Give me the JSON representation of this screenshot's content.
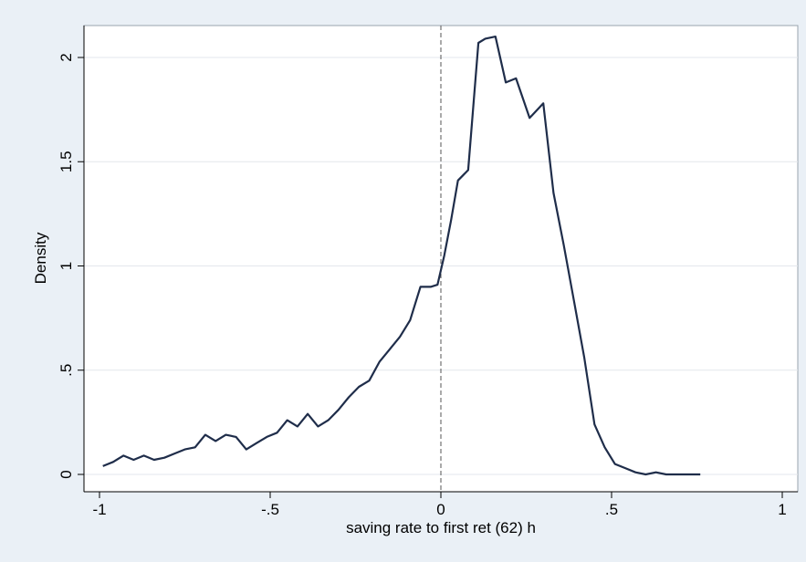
{
  "chart_data": {
    "type": "line",
    "title": "",
    "xlabel": "saving rate to first ret (62) h",
    "ylabel": "Density",
    "xlim": [
      -1,
      1
    ],
    "ylim": [
      0,
      2.15
    ],
    "xticks": [
      -1,
      -0.5,
      0,
      0.5,
      1
    ],
    "xtick_labels": [
      "-1",
      "-.5",
      "0",
      ".5",
      "1"
    ],
    "yticks": [
      0,
      0.5,
      1,
      1.5,
      2
    ],
    "ytick_labels": [
      "0",
      ".5",
      "1",
      "1.5",
      "2"
    ],
    "grid": true,
    "reference_line": {
      "x": 0,
      "style": "dashed"
    },
    "series": [
      {
        "color": "#1f2d4a",
        "x": [
          -0.99,
          -0.96,
          -0.93,
          -0.9,
          -0.87,
          -0.84,
          -0.81,
          -0.78,
          -0.75,
          -0.72,
          -0.69,
          -0.66,
          -0.63,
          -0.6,
          -0.57,
          -0.54,
          -0.51,
          -0.48,
          -0.45,
          -0.42,
          -0.39,
          -0.36,
          -0.33,
          -0.3,
          -0.27,
          -0.24,
          -0.21,
          -0.18,
          -0.15,
          -0.12,
          -0.09,
          -0.06,
          -0.03,
          -0.01,
          0.01,
          0.03,
          0.05,
          0.08,
          0.11,
          0.13,
          0.16,
          0.19,
          0.22,
          0.26,
          0.3,
          0.33,
          0.36,
          0.39,
          0.42,
          0.45,
          0.48,
          0.51,
          0.54,
          0.57,
          0.6,
          0.63,
          0.66,
          0.69,
          0.72,
          0.76
        ],
        "values": [
          0.04,
          0.06,
          0.09,
          0.07,
          0.09,
          0.07,
          0.08,
          0.1,
          0.12,
          0.13,
          0.19,
          0.16,
          0.19,
          0.18,
          0.12,
          0.15,
          0.18,
          0.2,
          0.26,
          0.23,
          0.29,
          0.23,
          0.26,
          0.31,
          0.37,
          0.42,
          0.45,
          0.54,
          0.6,
          0.66,
          0.74,
          0.9,
          0.9,
          0.91,
          1.05,
          1.22,
          1.41,
          1.46,
          2.07,
          2.09,
          2.1,
          1.88,
          1.9,
          1.71,
          1.78,
          1.35,
          1.1,
          0.83,
          0.56,
          0.24,
          0.13,
          0.05,
          0.03,
          0.01,
          0.0,
          0.01,
          0.0,
          0.0,
          0.0,
          0.0
        ]
      }
    ]
  }
}
